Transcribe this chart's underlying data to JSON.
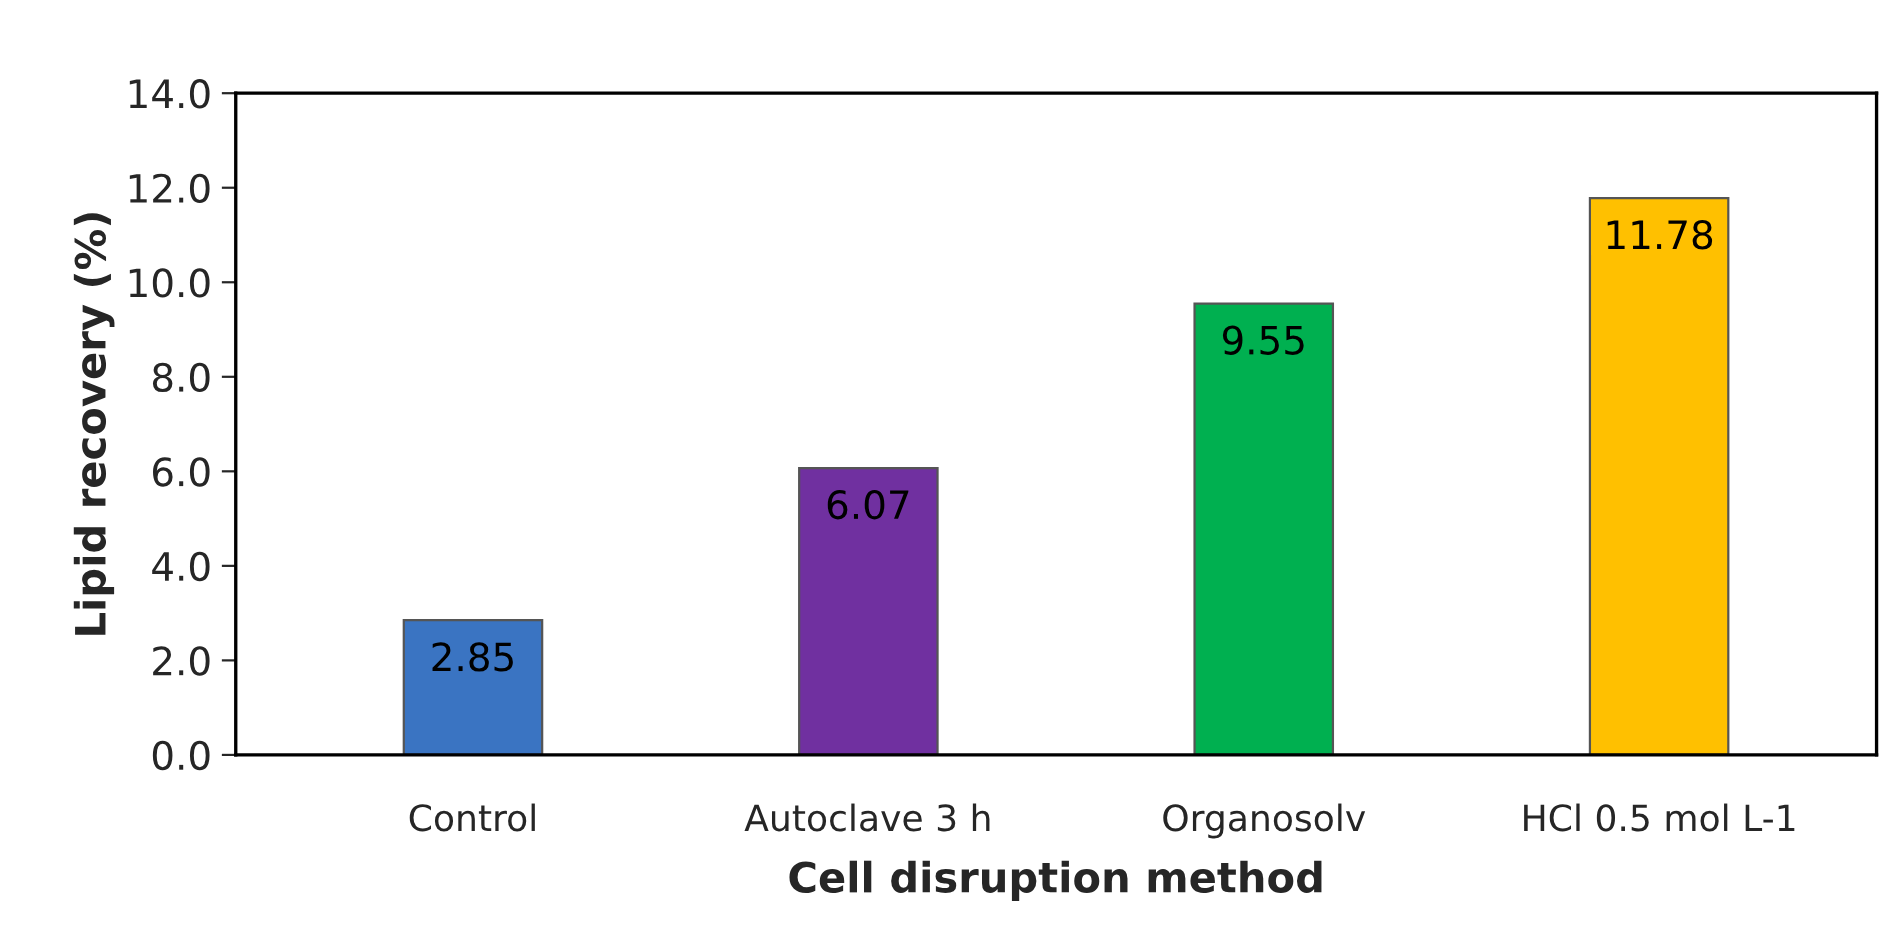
{
  "chart_data": {
    "type": "bar",
    "xlabel": "Cell disruption method",
    "ylabel": "Lipid recovery (%)",
    "categories": [
      "Control",
      "Autoclave 3 h",
      "Organosolv",
      "HCl 0.5 mol L-1"
    ],
    "values": [
      2.85,
      6.07,
      9.55,
      11.78
    ],
    "colors": [
      "#3a74c2",
      "#7030a0",
      "#00b050",
      "#ffc000"
    ],
    "data_labels": true,
    "ylim": [
      0,
      14
    ],
    "yticks": [
      {
        "value": 0,
        "label": "0.0"
      },
      {
        "value": 2,
        "label": "2.0"
      },
      {
        "value": 4,
        "label": "4.0"
      },
      {
        "value": 6,
        "label": "6.0"
      },
      {
        "value": 8,
        "label": "8.0"
      },
      {
        "value": 10,
        "label": "10.0"
      },
      {
        "value": 12,
        "label": "12.0"
      },
      {
        "value": 14,
        "label": "14.0"
      }
    ],
    "grid": false,
    "legend": false
  }
}
